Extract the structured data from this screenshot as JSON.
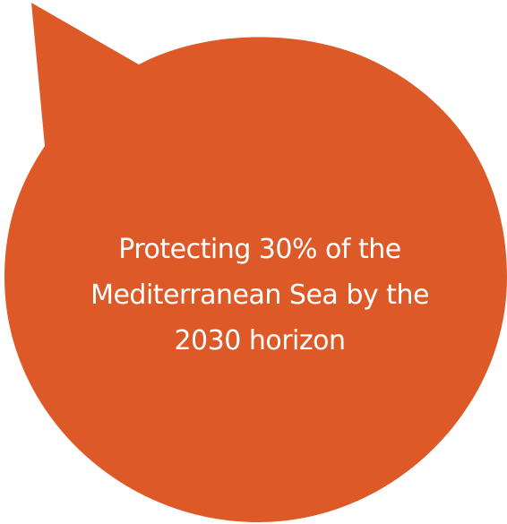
{
  "callout": {
    "lines": [
      "Protecting 30% of the",
      "Mediterranean Sea by the",
      "2030 horizon"
    ],
    "fill_color": "#DD5A28",
    "text_color": "#FFFFFF"
  }
}
